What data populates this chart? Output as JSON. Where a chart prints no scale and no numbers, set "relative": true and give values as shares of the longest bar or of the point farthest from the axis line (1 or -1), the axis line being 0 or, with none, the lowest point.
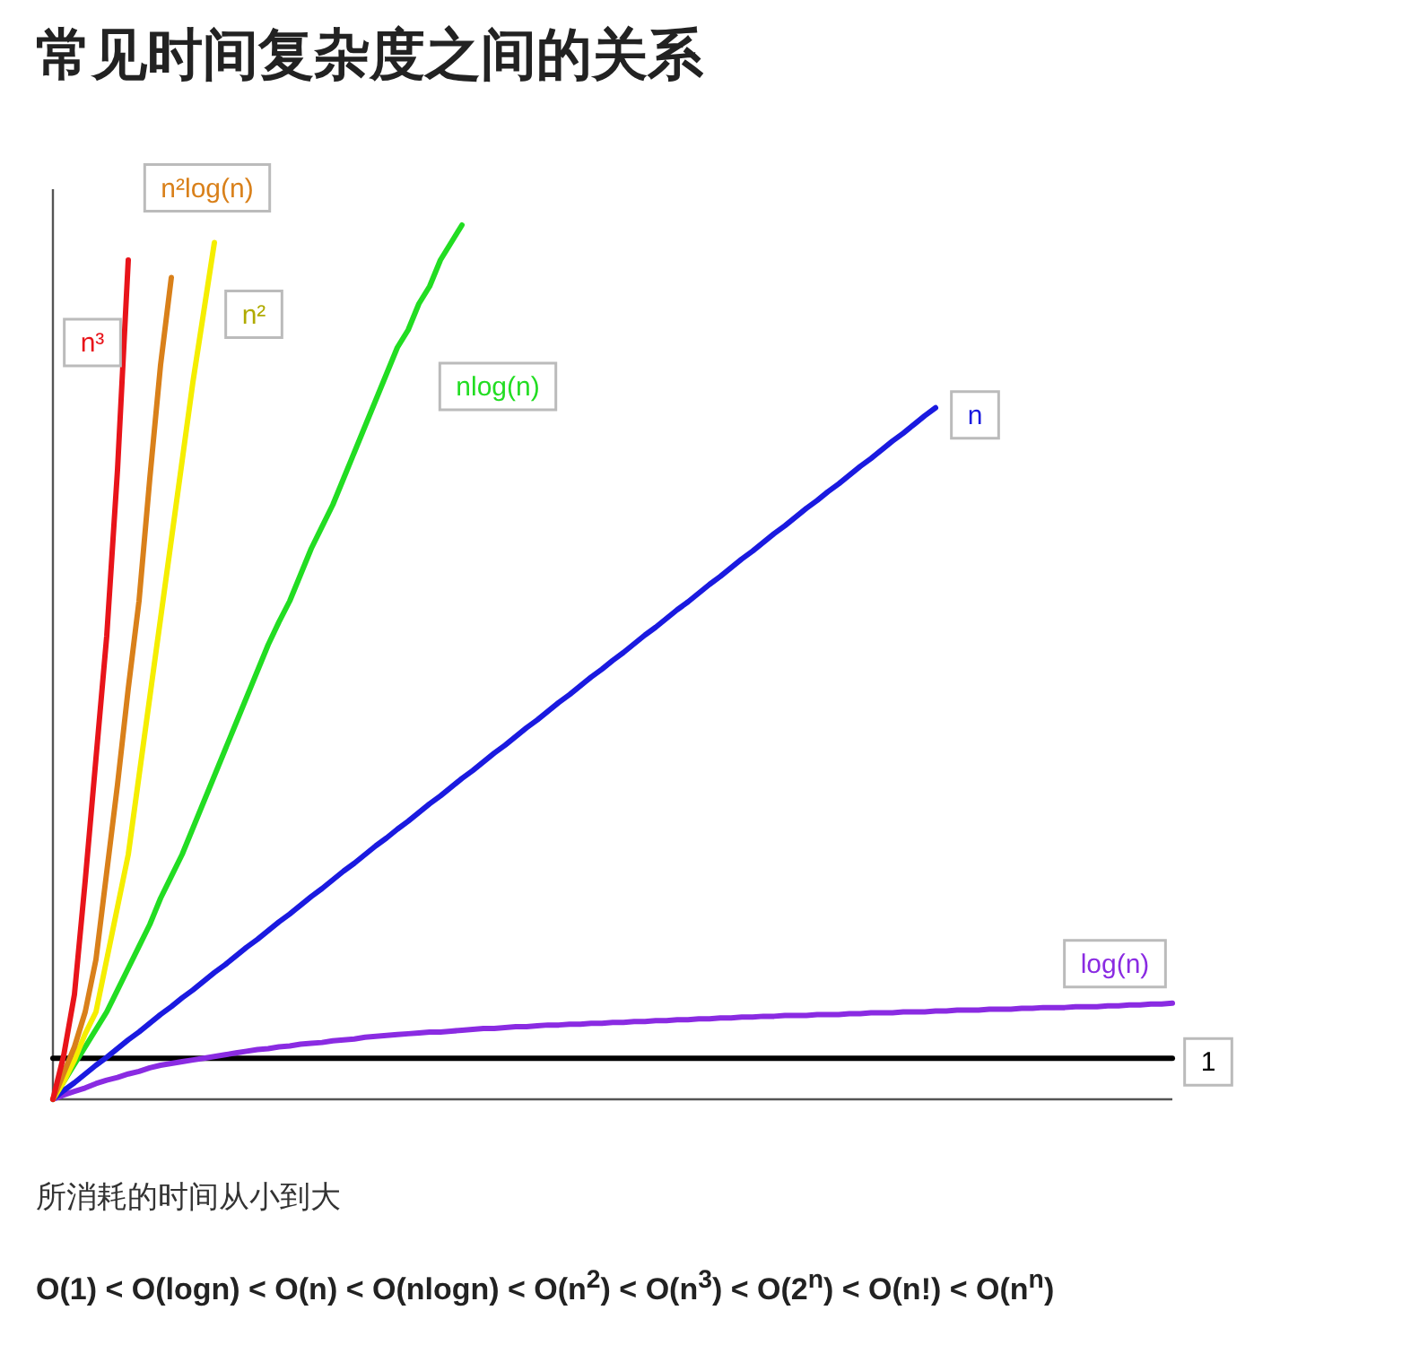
{
  "chart_data": {
    "type": "line",
    "title": "常见时间复杂度之间的关系",
    "relative": true,
    "legend": false,
    "grid": false,
    "marker": "none",
    "tick_labels": false,
    "annotations": [
      "所消耗的时间从小到大",
      "O(1) < O(logn) < O(n) < O(nlogn) < O(n$^{2}$) < O(n$^{3}$) < O(2$^{n}$) < O(n!) < O(n$^{n}$)"
    ],
    "categories": [
      null,
      null,
      null,
      null,
      null,
      null,
      null,
      null,
      null,
      null,
      null,
      null,
      null,
      null,
      null,
      null,
      null,
      null,
      null,
      null,
      null,
      null,
      null,
      null,
      null,
      null,
      null,
      null,
      null,
      null,
      null,
      null,
      null,
      null,
      null,
      null,
      null,
      null,
      null,
      null,
      null,
      null,
      null,
      null,
      null,
      null,
      null,
      null,
      null,
      null,
      null,
      null,
      null,
      null,
      null,
      null,
      null,
      null,
      null,
      null,
      null,
      null,
      null,
      null,
      null,
      null,
      null,
      null,
      null,
      null,
      null,
      null,
      null,
      null,
      null,
      null,
      null,
      null,
      null,
      null,
      null,
      null,
      null,
      null,
      null,
      null,
      null,
      null,
      null,
      null,
      null,
      null,
      null,
      null,
      null,
      null,
      null,
      null,
      null,
      null,
      null,
      null,
      null,
      null,
      null
    ],
    "series": [
      {
        "name": "n³",
        "color": "#e8141a",
        "values": [
          0,
          0.05,
          0.12,
          0.25,
          0.39,
          0.53,
          0.72,
          0.96,
          null,
          null,
          null,
          null,
          null,
          null,
          null,
          null,
          null,
          null,
          null,
          null,
          null,
          null,
          null,
          null,
          null,
          null,
          null,
          null,
          null,
          null,
          null,
          null,
          null,
          null,
          null,
          null,
          null,
          null,
          null,
          null,
          null,
          null,
          null,
          null,
          null,
          null,
          null,
          null,
          null,
          null,
          null,
          null,
          null,
          null,
          null,
          null,
          null,
          null,
          null,
          null,
          null,
          null,
          null,
          null,
          null,
          null,
          null,
          null,
          null,
          null,
          null,
          null,
          null,
          null,
          null,
          null,
          null,
          null,
          null,
          null,
          null,
          null,
          null,
          null,
          null,
          null,
          null,
          null,
          null,
          null,
          null,
          null,
          null,
          null,
          null,
          null,
          null,
          null,
          null,
          null,
          null,
          null,
          null,
          null,
          null
        ]
      },
      {
        "name": "n²log(n)",
        "color": "#d9801a",
        "values": [
          0,
          0.03,
          0.06,
          0.1,
          0.16,
          0.26,
          0.36,
          0.47,
          0.57,
          0.71,
          0.84,
          0.94,
          null,
          null,
          null,
          null,
          null,
          null,
          null,
          null,
          null,
          null,
          null,
          null,
          null,
          null,
          null,
          null,
          null,
          null,
          null,
          null,
          null,
          null,
          null,
          null,
          null,
          null,
          null,
          null,
          null,
          null,
          null,
          null,
          null,
          null,
          null,
          null,
          null,
          null,
          null,
          null,
          null,
          null,
          null,
          null,
          null,
          null,
          null,
          null,
          null,
          null,
          null,
          null,
          null,
          null,
          null,
          null,
          null,
          null,
          null,
          null,
          null,
          null,
          null,
          null,
          null,
          null,
          null,
          null,
          null,
          null,
          null,
          null,
          null,
          null,
          null,
          null,
          null,
          null,
          null,
          null,
          null,
          null,
          null,
          null,
          null,
          null,
          null,
          null,
          null,
          null,
          null,
          null,
          null
        ]
      },
      {
        "name": "n²",
        "color": "#f5ee00",
        "values": [
          0,
          0.02,
          0.045,
          0.075,
          0.1,
          0.16,
          0.22,
          0.28,
          0.37,
          0.46,
          0.55,
          0.64,
          0.73,
          0.82,
          0.9,
          0.98,
          null,
          null,
          null,
          null,
          null,
          null,
          null,
          null,
          null,
          null,
          null,
          null,
          null,
          null,
          null,
          null,
          null,
          null,
          null,
          null,
          null,
          null,
          null,
          null,
          null,
          null,
          null,
          null,
          null,
          null,
          null,
          null,
          null,
          null,
          null,
          null,
          null,
          null,
          null,
          null,
          null,
          null,
          null,
          null,
          null,
          null,
          null,
          null,
          null,
          null,
          null,
          null,
          null,
          null,
          null,
          null,
          null,
          null,
          null,
          null,
          null,
          null,
          null,
          null,
          null,
          null,
          null,
          null,
          null,
          null,
          null,
          null,
          null,
          null,
          null,
          null,
          null,
          null,
          null,
          null,
          null,
          null,
          null,
          null,
          null,
          null,
          null,
          null,
          null
        ]
      },
      {
        "name": "nlog(n)",
        "color": "#22dd22",
        "values": [
          0,
          0.02,
          0.04,
          0.06,
          0.08,
          0.1,
          0.125,
          0.15,
          0.175,
          0.2,
          0.23,
          0.255,
          0.28,
          0.31,
          0.34,
          0.37,
          0.4,
          0.43,
          0.46,
          0.49,
          0.52,
          0.546,
          0.57,
          0.6,
          0.63,
          0.655,
          0.68,
          0.71,
          0.74,
          0.77,
          0.8,
          0.83,
          0.86,
          0.88,
          0.91,
          0.93,
          0.96,
          0.98,
          1,
          null,
          null,
          null,
          null,
          null,
          null,
          null,
          null,
          null,
          null,
          null,
          null,
          null,
          null,
          null,
          null,
          null,
          null,
          null,
          null,
          null,
          null,
          null,
          null,
          null,
          null,
          null,
          null,
          null,
          null,
          null,
          null,
          null,
          null,
          null,
          null,
          null,
          null,
          null,
          null,
          null,
          null,
          null,
          null,
          null,
          null,
          null,
          null,
          null,
          null,
          null,
          null,
          null,
          null,
          null,
          null,
          null,
          null,
          null,
          null,
          null,
          null,
          null,
          null,
          null,
          null
        ]
      },
      {
        "name": "n",
        "color": "#1a1ae0",
        "values": [
          0,
          0.01,
          0.019,
          0.029,
          0.039,
          0.048,
          0.058,
          0.068,
          0.077,
          0.087,
          0.097,
          0.106,
          0.116,
          0.125,
          0.135,
          0.145,
          0.154,
          0.164,
          0.174,
          0.183,
          0.193,
          0.203,
          0.212,
          0.222,
          0.232,
          0.241,
          0.251,
          0.261,
          0.27,
          0.28,
          0.29,
          0.299,
          0.309,
          0.318,
          0.328,
          0.338,
          0.347,
          0.357,
          0.367,
          0.376,
          0.386,
          0.396,
          0.405,
          0.415,
          0.425,
          0.434,
          0.444,
          0.454,
          0.463,
          0.473,
          0.483,
          0.492,
          0.502,
          0.511,
          0.521,
          0.531,
          0.54,
          0.55,
          0.56,
          0.569,
          0.579,
          0.589,
          0.598,
          0.608,
          0.618,
          0.627,
          0.637,
          0.647,
          0.656,
          0.666,
          0.676,
          0.685,
          0.695,
          0.704,
          0.714,
          0.724,
          0.733,
          0.743,
          0.753,
          0.762,
          0.772,
          0.782,
          0.791,
          null,
          null,
          null,
          null,
          null,
          null,
          null,
          null,
          null,
          null,
          null,
          null,
          null,
          null,
          null,
          null,
          null,
          null,
          null,
          null,
          null,
          null
        ]
      },
      {
        "name": "log(n)",
        "color": "#8a2be2",
        "values": [
          0,
          0.005,
          0.009,
          0.013,
          0.018,
          0.022,
          0.025,
          0.029,
          0.032,
          0.036,
          0.039,
          0.041,
          0.043,
          0.045,
          0.047,
          0.049,
          0.051,
          0.053,
          0.055,
          0.057,
          0.058,
          0.06,
          0.061,
          0.063,
          0.064,
          0.065,
          0.067,
          0.068,
          0.069,
          0.071,
          0.072,
          0.073,
          0.074,
          0.075,
          0.076,
          0.077,
          0.077,
          0.078,
          0.079,
          0.08,
          0.081,
          0.081,
          0.082,
          0.083,
          0.083,
          0.084,
          0.085,
          0.085,
          0.086,
          0.086,
          0.087,
          0.087,
          0.088,
          0.088,
          0.089,
          0.089,
          0.09,
          0.09,
          0.091,
          0.091,
          0.092,
          0.092,
          0.093,
          0.093,
          0.094,
          0.094,
          0.095,
          0.095,
          0.096,
          0.096,
          0.096,
          0.097,
          0.097,
          0.097,
          0.098,
          0.098,
          0.099,
          0.099,
          0.099,
          0.1,
          0.1,
          0.1,
          0.101,
          0.101,
          0.102,
          0.102,
          0.102,
          0.103,
          0.103,
          0.103,
          0.104,
          0.104,
          0.105,
          0.105,
          0.105,
          0.106,
          0.106,
          0.106,
          0.107,
          0.107,
          0.108,
          0.108,
          0.109,
          0.109,
          0.11
        ]
      },
      {
        "name": "1",
        "color": "#000000",
        "values": [
          0.047,
          0.047,
          0.047,
          0.047,
          0.047,
          0.047,
          0.047,
          0.047,
          0.047,
          0.047,
          0.047,
          0.047,
          0.047,
          0.047,
          0.047,
          0.047,
          0.047,
          0.047,
          0.047,
          0.047,
          0.047,
          0.047,
          0.047,
          0.047,
          0.047,
          0.047,
          0.047,
          0.047,
          0.047,
          0.047,
          0.047,
          0.047,
          0.047,
          0.047,
          0.047,
          0.047,
          0.047,
          0.047,
          0.047,
          0.047,
          0.047,
          0.047,
          0.047,
          0.047,
          0.047,
          0.047,
          0.047,
          0.047,
          0.047,
          0.047,
          0.047,
          0.047,
          0.047,
          0.047,
          0.047,
          0.047,
          0.047,
          0.047,
          0.047,
          0.047,
          0.047,
          0.047,
          0.047,
          0.047,
          0.047,
          0.047,
          0.047,
          0.047,
          0.047,
          0.047,
          0.047,
          0.047,
          0.047,
          0.047,
          0.047,
          0.047,
          0.047,
          0.047,
          0.047,
          0.047,
          0.047,
          0.047,
          0.047,
          0.047,
          0.047,
          0.047,
          0.047,
          0.047,
          0.047,
          0.047,
          0.047,
          0.047,
          0.047,
          0.047,
          0.047,
          0.047,
          0.047,
          0.047,
          0.047,
          0.047,
          0.047,
          0.047,
          0.047,
          0.047,
          0.047
        ]
      }
    ]
  }
}
